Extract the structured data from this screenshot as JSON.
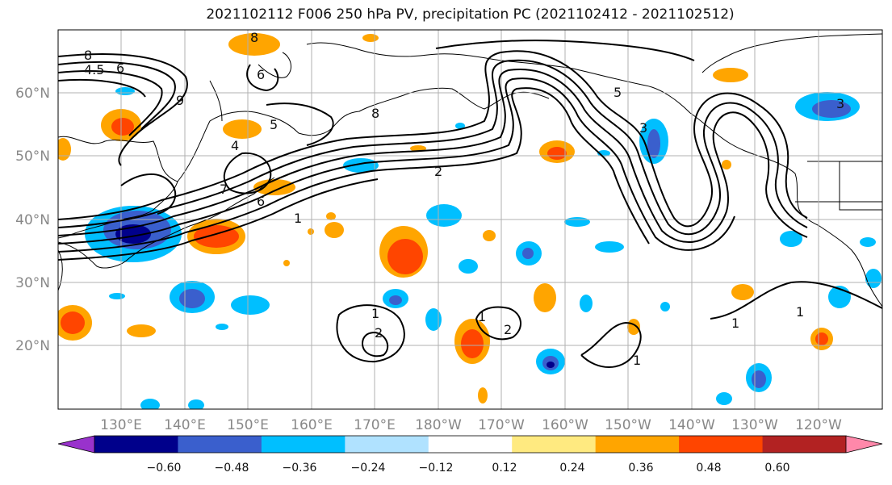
{
  "title": "2021102112 F006 250 hPa PV, precipitation PC (2021102412 - 2021102512)",
  "map": {
    "lat_labels": [
      "60°N",
      "50°N",
      "40°N",
      "30°N",
      "20°N"
    ],
    "lon_labels": [
      "130°E",
      "140°E",
      "150°E",
      "160°E",
      "170°E",
      "180°W",
      "170°W",
      "160°W",
      "150°W",
      "140°W",
      "130°W",
      "120°W"
    ],
    "contour_labels": [
      "8",
      "4.5",
      "6",
      "9",
      "6",
      "8",
      "5",
      "4",
      "7",
      "6",
      "8",
      "2",
      "1",
      "5",
      "3",
      "1",
      "2",
      "1",
      "1",
      "1",
      "2",
      "1",
      "3"
    ],
    "colors": {
      "land_line": "#000000",
      "grid": "#b0b0b0",
      "pv_contour": "#000000"
    }
  },
  "colorbar": {
    "ticks": [
      "−0.60",
      "−0.48",
      "−0.36",
      "−0.24",
      "−0.12",
      "0.12",
      "0.24",
      "0.36",
      "0.48",
      "0.60"
    ],
    "colors": [
      "#9932cc",
      "#00008b",
      "#3a5fcd",
      "#00bfff",
      "#b0e2ff",
      "#ffffff",
      "#ffea80",
      "#ffa500",
      "#ff4500",
      "#b22222",
      "#ff88aa"
    ]
  }
}
